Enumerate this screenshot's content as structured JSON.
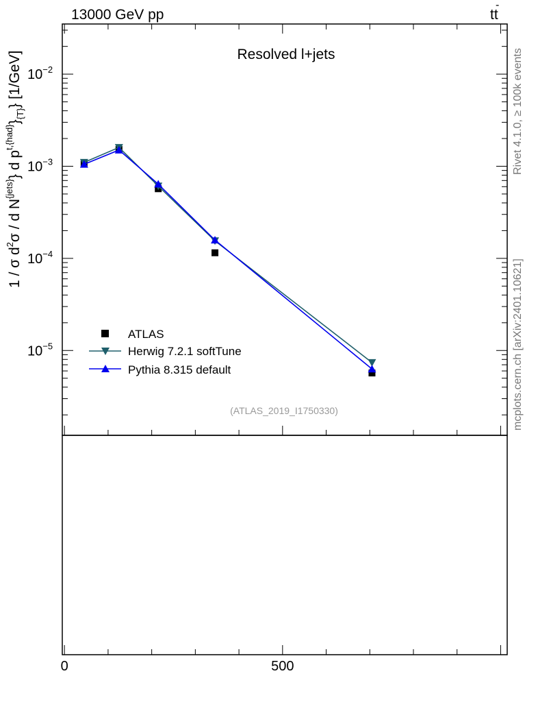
{
  "header": {
    "energy_label": "13000 GeV pp",
    "process_base": "tt",
    "process_bar": "-"
  },
  "side_labels": {
    "rivet": "Rivet 4.1.0, ≥ 100k events",
    "mcplots": "mcplots.cern.ch [arXiv:2401.10621]"
  },
  "chart_data": {
    "type": "line",
    "title": "Resolved l+jets",
    "analysis_tag": "(ATLAS_2019_I1750330)",
    "yscale": "log",
    "ylim": [
      1.2e-06,
      0.035
    ],
    "xlim": [
      -5,
      1015
    ],
    "ylabel": {
      "pre": "1 / σ d",
      "sup2": "2",
      "mid1": "σ / d N",
      "sup_jets": "{jets}",
      "mid2": "} d p",
      "sup_t": "t,{had}",
      "mid3": "}",
      "sub_T": "{T}",
      "post": "} [1/GeV]"
    },
    "y_tick_labels": [
      {
        "value": 0.01,
        "base": "10",
        "exp": "−2"
      },
      {
        "value": 0.001,
        "base": "10",
        "exp": "−3"
      },
      {
        "value": 0.0001,
        "base": "10",
        "exp": "−4"
      },
      {
        "value": 1e-05,
        "base": "10",
        "exp": "−5"
      }
    ],
    "x_tick_labels": [
      {
        "value": 0,
        "label": "0"
      },
      {
        "value": 500,
        "label": "500"
      }
    ],
    "x": [
      45,
      125,
      215,
      345,
      705
    ],
    "series": [
      {
        "name": "ATLAS",
        "marker": "square",
        "color": "#000000",
        "line": false,
        "values": [
          0.00106,
          0.00152,
          0.00057,
          0.000115,
          5.7e-06
        ]
      },
      {
        "name": "Herwig 7.2.1 softTune",
        "marker": "triangle-down",
        "color": "#1f5f6b",
        "line": true,
        "values": [
          0.0011,
          0.0016,
          0.00061,
          0.000155,
          7.4e-06
        ]
      },
      {
        "name": "Pythia 8.315 default",
        "marker": "triangle-up",
        "color": "#0000ee",
        "line": true,
        "values": [
          0.00105,
          0.0015,
          0.00064,
          0.000158,
          6.3e-06
        ]
      }
    ]
  }
}
